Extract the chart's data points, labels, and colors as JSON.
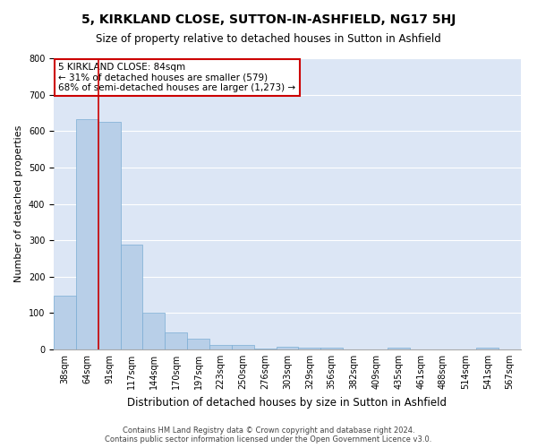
{
  "title": "5, KIRKLAND CLOSE, SUTTON-IN-ASHFIELD, NG17 5HJ",
  "subtitle": "Size of property relative to detached houses in Sutton in Ashfield",
  "xlabel": "Distribution of detached houses by size in Sutton in Ashfield",
  "ylabel": "Number of detached properties",
  "footer_line1": "Contains HM Land Registry data © Crown copyright and database right 2024.",
  "footer_line2": "Contains public sector information licensed under the Open Government Licence v3.0.",
  "bar_categories": [
    "38sqm",
    "64sqm",
    "91sqm",
    "117sqm",
    "144sqm",
    "170sqm",
    "197sqm",
    "223sqm",
    "250sqm",
    "276sqm",
    "303sqm",
    "329sqm",
    "356sqm",
    "382sqm",
    "409sqm",
    "435sqm",
    "461sqm",
    "488sqm",
    "514sqm",
    "541sqm",
    "567sqm"
  ],
  "bar_values": [
    148,
    632,
    625,
    288,
    100,
    47,
    30,
    12,
    12,
    2,
    7,
    6,
    5,
    0,
    0,
    5,
    0,
    0,
    0,
    5,
    0
  ],
  "bar_color": "#b8cfe8",
  "bar_edge_color": "#7aadd4",
  "background_color": "#dce6f5",
  "grid_color": "#ffffff",
  "property_line_color": "#cc0000",
  "annotation_box_color": "#ffffff",
  "annotation_box_edge_color": "#cc0000",
  "ylim": [
    0,
    800
  ],
  "yticks": [
    0,
    100,
    200,
    300,
    400,
    500,
    600,
    700,
    800
  ],
  "title_fontsize": 10,
  "subtitle_fontsize": 8.5,
  "xlabel_fontsize": 8.5,
  "ylabel_fontsize": 8,
  "tick_fontsize": 7,
  "annotation_fontsize": 7.5,
  "footer_fontsize": 6
}
